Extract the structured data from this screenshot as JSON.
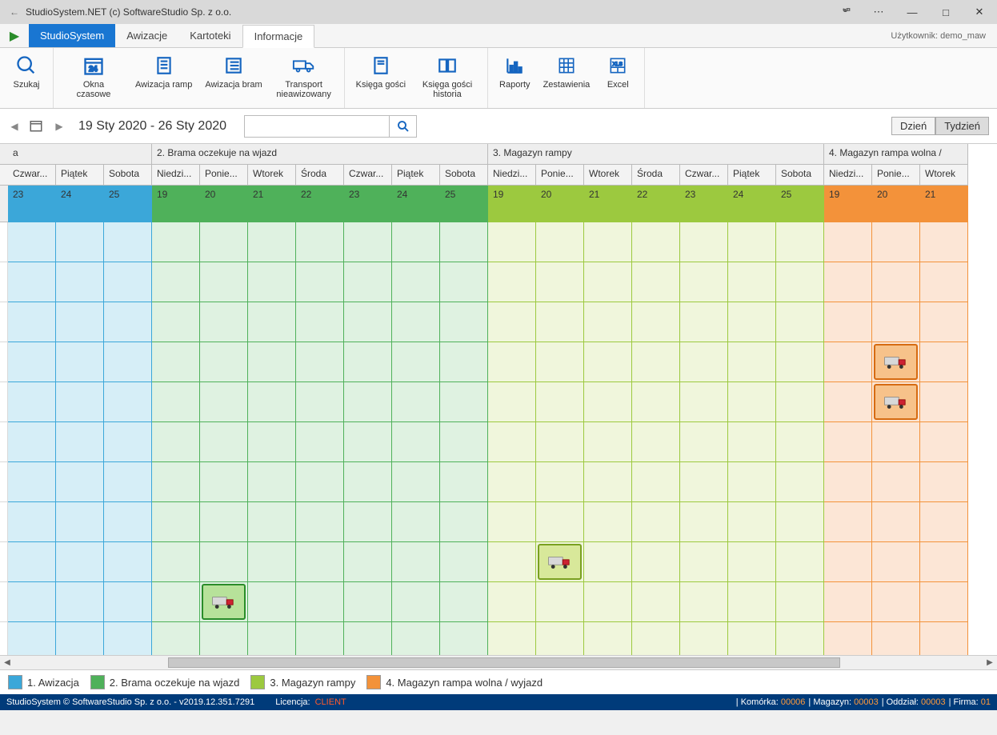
{
  "window": {
    "title": "StudioSystem.NET (c) SoftwareStudio Sp. z o.o."
  },
  "menu": {
    "primary": "StudioSystem",
    "tabs": [
      "Awizacje",
      "Kartoteki",
      "Informacje"
    ],
    "active": "Informacje",
    "user": "Użytkownik: demo_maw"
  },
  "ribbon": [
    {
      "label": "Szukaj",
      "icon": "search"
    },
    {
      "label": "Okna czasowe",
      "icon": "cal24"
    },
    {
      "label": "Awizacja ramp",
      "icon": "doc"
    },
    {
      "label": "Awizacja bram",
      "icon": "list"
    },
    {
      "label": "Transport nieawizowany",
      "icon": "truck"
    },
    {
      "label": "Księga gości",
      "icon": "book"
    },
    {
      "label": "Księga gości historia",
      "icon": "bookopen"
    },
    {
      "label": "Raporty",
      "icon": "chart"
    },
    {
      "label": "Zestawienia",
      "icon": "grid"
    },
    {
      "label": "Excel",
      "icon": "xls"
    }
  ],
  "nav": {
    "range": "19 Sty 2020 - 26 Sty 2020",
    "search_placeholder": "",
    "day": "Dzień",
    "week": "Tydzień"
  },
  "sections": {
    "s1": {
      "label": "a",
      "color_head": "#3ba7d9",
      "color_body": "#d6eef7",
      "border": "#3ba7d9"
    },
    "s2": {
      "label": "2. Brama oczekuje na wjazd",
      "color_head": "#4fb15a",
      "color_body": "#dff2e1",
      "border": "#4fb15a"
    },
    "s3": {
      "label": "3. Magazyn rampy",
      "color_head": "#9cc93f",
      "color_body": "#f0f6dc",
      "border": "#9cc93f"
    },
    "s4": {
      "label": "4. Magazyn rampa wolna /",
      "color_head": "#f3923a",
      "color_body": "#fce6d6",
      "border": "#f3923a"
    }
  },
  "days_s1": [
    "Czwar...",
    "Piątek",
    "Sobota"
  ],
  "nums_s1": [
    "23",
    "24",
    "25"
  ],
  "days_full": [
    "Niedzi...",
    "Ponie...",
    "Wtorek",
    "Środa",
    "Czwar...",
    "Piątek",
    "Sobota"
  ],
  "nums_full": [
    "19",
    "20",
    "21",
    "22",
    "23",
    "24",
    "25"
  ],
  "days_s4": [
    "Niedzi...",
    "Ponie...",
    "Wtorek"
  ],
  "nums_s4": [
    "19",
    "20",
    "21"
  ],
  "events": [
    {
      "section": "s2",
      "col": 1,
      "row": 9,
      "border": "#2a8c2a",
      "bg": "#b7e29a"
    },
    {
      "section": "s3",
      "col": 1,
      "row": 8,
      "border": "#7aa020",
      "bg": "#d8e89a"
    },
    {
      "section": "s4",
      "col": 1,
      "row": 3,
      "border": "#d66b12",
      "bg": "#f7c28a"
    },
    {
      "section": "s4",
      "col": 1,
      "row": 4,
      "border": "#d66b12",
      "bg": "#f7c28a"
    }
  ],
  "legend": [
    {
      "label": "1. Awizacja",
      "color": "#3ba7d9"
    },
    {
      "label": "2. Brama oczekuje na wjazd",
      "color": "#4fb15a"
    },
    {
      "label": "3. Magazyn rampy",
      "color": "#9cc93f"
    },
    {
      "label": "4. Magazyn rampa wolna / wyjazd",
      "color": "#f3923a"
    }
  ],
  "status": {
    "app": "StudioSystem © SoftwareStudio Sp. z o.o. - v2019.12.351.7291",
    "lic_label": "Licencja:",
    "lic_val": "CLIENT",
    "cells": [
      {
        "k": "Komórka:",
        "v": "00006"
      },
      {
        "k": "Magazyn:",
        "v": "00003"
      },
      {
        "k": "Oddział:",
        "v": "00003"
      },
      {
        "k": "Firma:",
        "v": "01"
      }
    ]
  }
}
